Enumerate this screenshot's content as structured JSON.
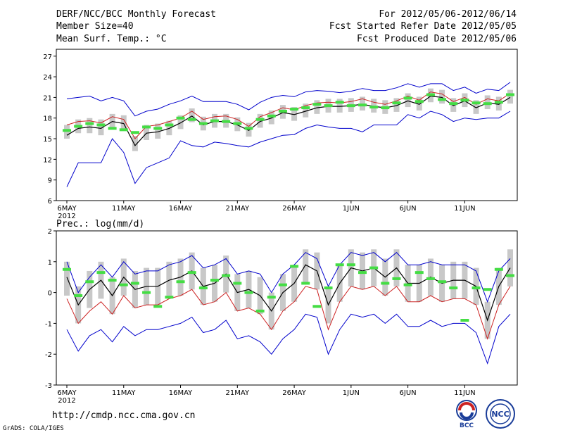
{
  "header": {
    "title": "DERF/NCC/BCC Monthly Forecast",
    "member_size": "Member Size=40",
    "variable": "Mean Surf. Temp.: °C",
    "period": "For 2012/05/06-2012/06/14",
    "fcst_started": "Fcst Started Refer Date 2012/05/05",
    "fcst_produced": "Fcst Produced Date 2012/05/06"
  },
  "footer": {
    "url": "http://cmdp.ncc.cma.gov.cn",
    "credit": "GrADS: COLA/IGES",
    "logo_bcc": "BCC",
    "logo_ncc": "NCC"
  },
  "colors": {
    "box": "#c8c8c8",
    "obs": "#44dd44",
    "mean": "#000000",
    "ctrl": "#cc2222",
    "envelope": "#0000cc"
  },
  "chart_data": [
    {
      "type": "line",
      "title": "Mean Surf. Temp.: °C",
      "x_tick_labels": [
        "6MAY",
        "11MAY",
        "16MAY",
        "21MAY",
        "26MAY",
        "1JUN",
        "6JUN",
        "11JUN"
      ],
      "x_year_label": "2012",
      "y_ticks": [
        6,
        9,
        12,
        15,
        18,
        21,
        24,
        27
      ],
      "ylim": [
        6,
        28
      ],
      "n_days": 40,
      "series": [
        {
          "name": "ensemble mean",
          "values": [
            15.5,
            16.5,
            16.7,
            16.5,
            17.5,
            17.2,
            14.0,
            15.8,
            16.0,
            16.5,
            17.3,
            18.3,
            17.0,
            17.5,
            17.5,
            17.0,
            16.2,
            17.5,
            18.0,
            18.8,
            18.5,
            19.0,
            19.5,
            19.7,
            19.7,
            19.8,
            20.0,
            19.7,
            19.5,
            19.8,
            20.5,
            20.0,
            21.2,
            21.0,
            19.8,
            20.5,
            19.5,
            20.2,
            20.0,
            21.0
          ]
        },
        {
          "name": "control",
          "values": [
            17.0,
            17.5,
            17.6,
            17.3,
            18.2,
            17.8,
            15.0,
            16.8,
            17.0,
            17.5,
            18.0,
            19.0,
            17.8,
            18.2,
            18.3,
            17.8,
            16.8,
            18.2,
            18.8,
            19.5,
            19.2,
            19.8,
            20.2,
            20.3,
            20.2,
            20.4,
            20.8,
            20.3,
            20.0,
            20.5,
            21.2,
            20.6,
            21.8,
            21.5,
            20.4,
            21.0,
            20.0,
            20.8,
            20.5,
            21.6
          ]
        },
        {
          "name": "obs",
          "values": [
            16.2,
            16.8,
            17.2,
            17.0,
            16.5,
            16.3,
            15.9,
            16.7,
            16.5,
            17.0,
            18.0,
            17.8,
            17.2,
            17.6,
            17.5,
            17.2,
            16.5,
            17.8,
            18.3,
            19.0,
            19.3,
            19.5,
            20.0,
            19.8,
            20.3,
            19.8,
            19.9,
            19.6,
            19.5,
            20.2,
            20.9,
            20.4,
            21.4,
            20.7,
            20.1,
            20.6,
            20.2,
            20.1,
            20.3,
            21.4
          ]
        },
        {
          "name": "upper",
          "values": [
            20.8,
            21.0,
            21.2,
            20.5,
            21.0,
            20.5,
            18.3,
            19.0,
            19.3,
            20.0,
            20.5,
            21.2,
            20.4,
            20.4,
            20.4,
            20.0,
            19.2,
            20.3,
            21.0,
            21.3,
            21.1,
            21.8,
            22.0,
            21.9,
            21.7,
            21.9,
            22.3,
            22.0,
            22.0,
            22.4,
            23.0,
            22.5,
            23.0,
            23.0,
            22.0,
            22.5,
            21.6,
            22.2,
            22.0,
            23.2
          ]
        },
        {
          "name": "lower",
          "values": [
            8.0,
            11.5,
            11.5,
            11.5,
            15.0,
            13.0,
            8.5,
            10.8,
            11.5,
            12.2,
            14.7,
            14.0,
            13.8,
            14.5,
            14.3,
            14.0,
            13.8,
            14.5,
            15.0,
            15.5,
            15.6,
            16.5,
            17.0,
            16.7,
            16.5,
            16.5,
            16.0,
            17.0,
            17.0,
            17.0,
            18.5,
            18.0,
            19.0,
            18.5,
            17.5,
            18.0,
            17.8,
            18.0,
            18.0,
            19.0
          ]
        },
        {
          "name": "box_low",
          "values": [
            15.0,
            15.8,
            15.8,
            15.5,
            16.6,
            16.3,
            13.2,
            14.8,
            15.0,
            15.5,
            16.4,
            17.4,
            16.2,
            16.6,
            16.6,
            16.1,
            15.3,
            16.6,
            17.1,
            17.9,
            17.6,
            18.1,
            18.6,
            18.8,
            18.8,
            18.9,
            19.1,
            18.8,
            18.6,
            18.9,
            19.6,
            19.1,
            20.3,
            20.1,
            18.9,
            19.6,
            18.6,
            19.3,
            19.1,
            20.1
          ]
        },
        {
          "name": "box_high",
          "values": [
            17.0,
            17.8,
            18.0,
            17.8,
            18.6,
            18.4,
            15.4,
            17.0,
            17.2,
            17.6,
            18.4,
            19.4,
            18.2,
            18.6,
            18.6,
            18.1,
            17.3,
            18.6,
            19.1,
            19.9,
            19.6,
            20.1,
            20.6,
            20.8,
            20.8,
            20.9,
            21.1,
            20.8,
            20.6,
            20.9,
            21.6,
            21.1,
            22.3,
            22.1,
            20.9,
            21.6,
            20.6,
            21.3,
            21.1,
            22.1
          ]
        }
      ]
    },
    {
      "type": "line",
      "title": "Prec.: log(mm/d)",
      "x_tick_labels": [
        "6MAY",
        "11MAY",
        "16MAY",
        "21MAY",
        "26MAY",
        "1JUN",
        "6JUN",
        "11JUN"
      ],
      "x_year_label": "2012",
      "y_ticks": [
        -3,
        -2,
        -1,
        0,
        1,
        2
      ],
      "ylim": [
        -3,
        2
      ],
      "n_days": 40,
      "series": [
        {
          "name": "ensemble mean",
          "values": [
            0.5,
            -0.4,
            0.1,
            0.4,
            -0.1,
            0.5,
            0.1,
            0.2,
            0.2,
            0.4,
            0.5,
            0.7,
            0.2,
            0.3,
            0.6,
            0.0,
            0.1,
            -0.1,
            -0.6,
            0.0,
            0.3,
            0.9,
            0.7,
            -0.4,
            0.3,
            0.8,
            0.7,
            0.8,
            0.5,
            0.8,
            0.3,
            0.3,
            0.5,
            0.3,
            0.4,
            0.4,
            0.2,
            -0.9,
            0.2,
            0.8
          ]
        },
        {
          "name": "control",
          "values": [
            -0.2,
            -1.0,
            -0.6,
            -0.3,
            -0.7,
            -0.1,
            -0.5,
            -0.4,
            -0.4,
            -0.2,
            -0.1,
            0.1,
            -0.4,
            -0.3,
            0.0,
            -0.6,
            -0.5,
            -0.7,
            -1.2,
            -0.6,
            -0.3,
            0.2,
            0.1,
            -1.2,
            -0.3,
            0.2,
            0.1,
            0.2,
            -0.1,
            0.2,
            -0.3,
            -0.3,
            -0.1,
            -0.3,
            -0.2,
            -0.2,
            -0.4,
            -1.5,
            -0.4,
            0.2
          ]
        },
        {
          "name": "obs",
          "values": [
            0.75,
            -0.1,
            0.35,
            0.65,
            0.4,
            0.25,
            0.3,
            0.0,
            -0.45,
            -0.15,
            0.35,
            0.65,
            0.15,
            0.4,
            0.55,
            0.3,
            0.0,
            -0.6,
            -0.15,
            0.25,
            0.85,
            0.3,
            -0.45,
            0.15,
            0.9,
            0.9,
            0.65,
            0.8,
            0.3,
            0.45,
            0.25,
            0.65,
            0.45,
            0.35,
            0.15,
            -0.9,
            0.15,
            0.1,
            0.75,
            0.55
          ]
        },
        {
          "name": "upper",
          "values": [
            1.0,
            0.0,
            0.5,
            0.9,
            0.5,
            1.0,
            0.6,
            0.7,
            0.7,
            0.9,
            1.0,
            1.2,
            0.8,
            0.9,
            1.1,
            0.6,
            0.7,
            0.6,
            0.0,
            0.6,
            0.9,
            1.3,
            1.1,
            0.2,
            0.9,
            1.3,
            1.2,
            1.3,
            1.0,
            1.3,
            0.9,
            0.9,
            1.0,
            0.9,
            0.9,
            0.9,
            0.7,
            -0.3,
            0.7,
            1.1
          ]
        },
        {
          "name": "lower",
          "values": [
            -1.2,
            -1.9,
            -1.4,
            -1.2,
            -1.6,
            -1.1,
            -1.4,
            -1.2,
            -1.2,
            -1.1,
            -1.0,
            -0.8,
            -1.3,
            -1.2,
            -0.9,
            -1.5,
            -1.4,
            -1.6,
            -2.0,
            -1.5,
            -1.2,
            -0.7,
            -0.8,
            -2.0,
            -1.2,
            -0.7,
            -0.8,
            -0.7,
            -1.0,
            -0.7,
            -1.1,
            -1.1,
            -0.9,
            -1.1,
            -1.0,
            -1.0,
            -1.3,
            -2.3,
            -1.1,
            -0.7
          ]
        },
        {
          "name": "box_low",
          "values": [
            -0.1,
            -1.0,
            -0.5,
            -0.2,
            -0.7,
            -0.1,
            -0.5,
            -0.4,
            -0.4,
            -0.2,
            -0.1,
            0.1,
            -0.4,
            -0.3,
            0.0,
            -0.6,
            -0.5,
            -0.7,
            -1.2,
            -0.6,
            -0.3,
            0.3,
            0.1,
            -1.0,
            -0.3,
            0.2,
            0.1,
            0.2,
            -0.1,
            0.2,
            -0.3,
            -0.3,
            -0.1,
            -0.3,
            -0.2,
            -0.2,
            -0.4,
            -1.5,
            -0.4,
            0.2
          ]
        },
        {
          "name": "box_high",
          "values": [
            1.0,
            0.2,
            0.7,
            1.0,
            0.5,
            1.1,
            0.7,
            0.8,
            0.8,
            1.0,
            1.1,
            1.3,
            0.8,
            0.9,
            1.2,
            0.6,
            0.7,
            0.5,
            0.0,
            0.6,
            0.9,
            1.4,
            1.3,
            0.2,
            0.9,
            1.4,
            1.3,
            1.4,
            1.1,
            1.4,
            0.9,
            0.9,
            1.1,
            0.9,
            1.0,
            1.0,
            0.8,
            -0.3,
            0.8,
            1.4
          ]
        }
      ]
    }
  ]
}
